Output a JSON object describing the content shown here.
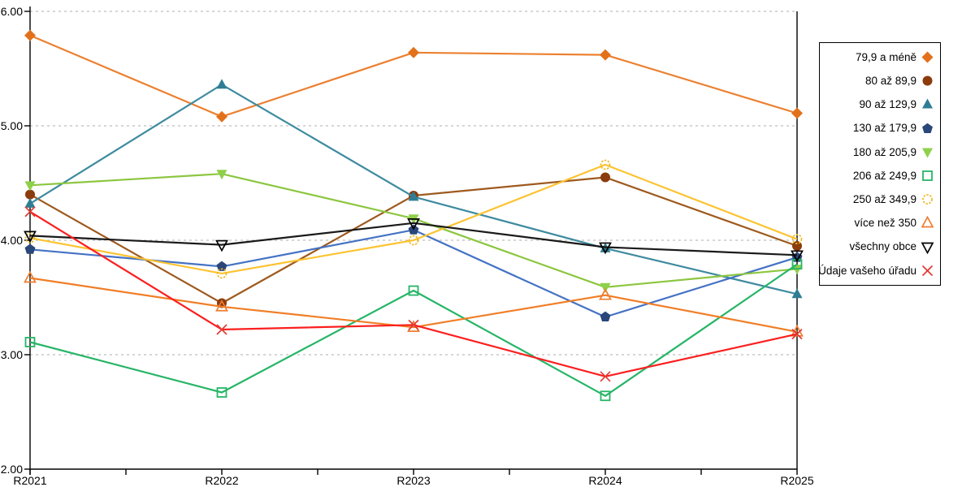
{
  "chart_data": {
    "type": "line",
    "title": "",
    "xlabel": "",
    "ylabel": "",
    "grid": "horizontal-dashed",
    "legend_position": "right",
    "categories": [
      "R2021",
      "R2022",
      "R2023",
      "R2024",
      "R2025"
    ],
    "y_axis": {
      "min": 2,
      "max": 6,
      "tick_values": [
        6,
        5,
        4,
        3,
        2
      ],
      "tick_labels": [
        "6.00",
        "5.00",
        "4.00",
        "3.00",
        "2.00"
      ]
    },
    "colors": {
      "grid": "#ADADAD",
      "axis": "#000000",
      "background": "#FFFFFF"
    },
    "series": [
      {
        "name": "79,9 a méně",
        "marker": "diamond",
        "filled": true,
        "line_color": "#EC8030",
        "marker_color": "#E2711B",
        "values": [
          5.79,
          5.08,
          5.64,
          5.62,
          5.11
        ]
      },
      {
        "name": "80 až 89,9",
        "marker": "circle",
        "filled": true,
        "line_color": "#9E5A1E",
        "marker_color": "#8C3B0C",
        "values": [
          4.4,
          3.45,
          4.39,
          4.55,
          3.95
        ]
      },
      {
        "name": "90 až 129,9",
        "marker": "triangle-up",
        "filled": true,
        "line_color": "#3E8BA0",
        "marker_color": "#2F7D95",
        "values": [
          4.32,
          5.36,
          4.38,
          3.93,
          3.53
        ]
      },
      {
        "name": "130 až 179,9",
        "marker": "pentagon",
        "filled": true,
        "line_color": "#4472C4",
        "marker_color": "#2A4779",
        "values": [
          3.92,
          3.77,
          4.09,
          3.33,
          3.85
        ]
      },
      {
        "name": "180 až 205,9",
        "marker": "triangle-down",
        "filled": true,
        "line_color": "#8CC63F",
        "marker_color": "#8ED049",
        "values": [
          4.48,
          4.58,
          4.19,
          3.59,
          3.75
        ]
      },
      {
        "name": "206 až 249,9",
        "marker": "square",
        "filled": false,
        "line_color": "#27B567",
        "marker_color": "#27B567",
        "values": [
          3.11,
          2.67,
          3.56,
          2.64,
          3.79
        ]
      },
      {
        "name": "250 až 349,9",
        "marker": "circle-dashed",
        "filled": false,
        "line_color": "#FCC330",
        "marker_color": "#EFB71E",
        "values": [
          4.02,
          3.71,
          4.0,
          4.66,
          4.01
        ]
      },
      {
        "name": "více než 350",
        "marker": "triangle-up",
        "filled": false,
        "line_color": "#F07E27",
        "marker_color": "#ED7D31",
        "values": [
          3.67,
          3.42,
          3.24,
          3.52,
          3.2
        ]
      },
      {
        "name": "všechny obce",
        "marker": "triangle-down",
        "filled": false,
        "line_color": "#1A1A1A",
        "marker_color": "#000000",
        "values": [
          4.04,
          3.96,
          4.15,
          3.94,
          3.87
        ]
      },
      {
        "name": "Údaje vašeho úřadu",
        "marker": "x-cross",
        "filled": false,
        "line_color": "#FB1F1F",
        "marker_color": "#E23B34",
        "values": [
          4.25,
          3.22,
          3.26,
          2.81,
          3.18
        ]
      }
    ]
  }
}
